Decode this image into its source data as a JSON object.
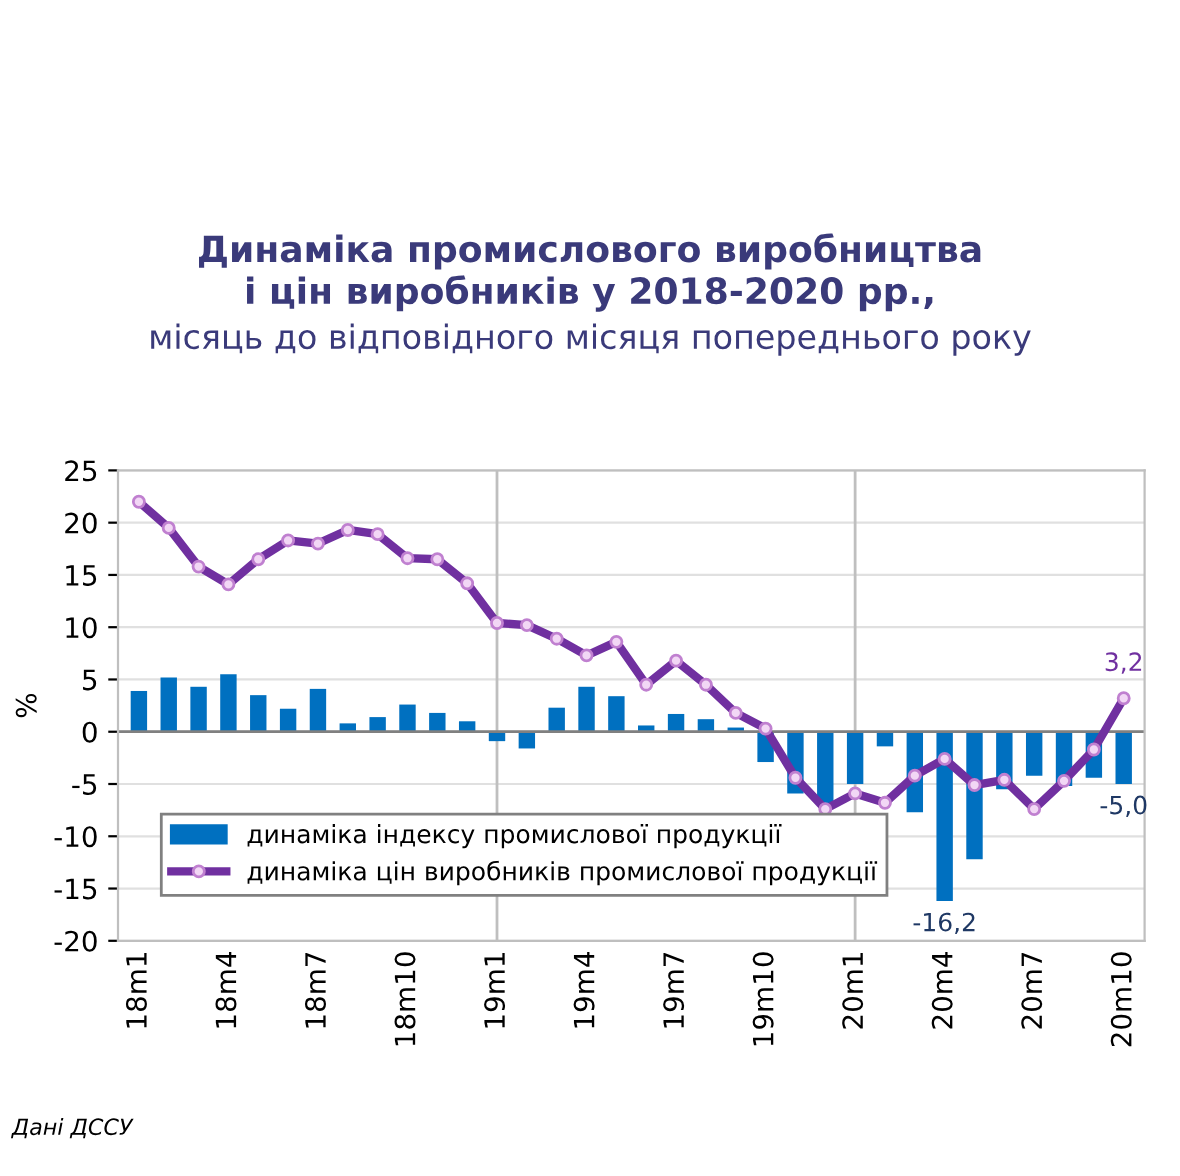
{
  "chart_data": {
    "type": "bar",
    "title": "Динаміка промислового виробництва\nі цін виробників у 2018-2020 рр.,",
    "subtitle": "місяць до відповідного місяця попереднього року",
    "ylabel": "%",
    "categories": [
      "18m1",
      null,
      null,
      "18m4",
      null,
      null,
      "18m7",
      null,
      null,
      "18m10",
      null,
      null,
      "19m1",
      null,
      null,
      "19m4",
      null,
      null,
      "19m7",
      null,
      null,
      "19m10",
      null,
      null,
      "20m1",
      null,
      null,
      "20m4",
      null,
      null,
      "20m7",
      null,
      null,
      "20m10"
    ],
    "series": [
      {
        "name": "динаміка індексу промислової продукції",
        "color": "#0070c0",
        "values": [
          3.9,
          5.2,
          4.3,
          5.5,
          3.5,
          2.2,
          4.1,
          0.8,
          1.4,
          2.6,
          1.8,
          1.0,
          -0.9,
          -1.6,
          2.3,
          4.3,
          3.4,
          0.6,
          1.7,
          1.2,
          0.4,
          -2.9,
          -5.9,
          -7.0,
          -5.0,
          -1.4,
          -7.7,
          -16.2,
          -12.2,
          -5.5,
          -4.2,
          -5.2,
          -4.4,
          -5.0
        ],
        "value_labels": [
          null,
          null,
          null,
          null,
          null,
          null,
          null,
          null,
          null,
          null,
          null,
          null,
          null,
          null,
          null,
          null,
          null,
          null,
          null,
          null,
          null,
          null,
          null,
          null,
          null,
          null,
          null,
          "-16,2",
          null,
          null,
          null,
          null,
          null,
          "-5,0"
        ]
      },
      {
        "name": "динаміка цін виробників промислової продукції",
        "type": "line",
        "color": "#7030a0",
        "marker": "circle",
        "line_style": "solid",
        "values": [
          22.0,
          19.5,
          15.8,
          14.1,
          16.5,
          18.3,
          18.0,
          19.3,
          18.9,
          16.6,
          16.5,
          14.2,
          10.4,
          10.2,
          8.9,
          7.3,
          8.6,
          4.5,
          6.8,
          4.5,
          1.8,
          0.3,
          -4.4,
          -7.4,
          -5.9,
          -6.8,
          -4.2,
          -2.6,
          -5.1,
          -4.6,
          -7.4,
          -4.7,
          -1.7,
          3.2
        ],
        "value_labels": [
          null,
          null,
          null,
          null,
          null,
          null,
          null,
          null,
          null,
          null,
          null,
          null,
          null,
          null,
          null,
          null,
          null,
          null,
          null,
          null,
          null,
          null,
          null,
          null,
          null,
          null,
          null,
          null,
          null,
          null,
          null,
          null,
          null,
          "3,2"
        ]
      }
    ],
    "ylim": [
      -20,
      25
    ],
    "yticks": [
      -20,
      -15,
      -10,
      -5,
      0,
      5,
      10,
      15,
      20,
      25
    ],
    "grid": "y",
    "legend": "bottom left",
    "ref_lines": [
      {
        "axis": "x",
        "value": "19m1",
        "color": "#bfbfbf"
      },
      {
        "axis": "x",
        "value": "20m1",
        "color": "#bfbfbf"
      }
    ],
    "annotations": [
      "Дані ДССУ"
    ]
  }
}
